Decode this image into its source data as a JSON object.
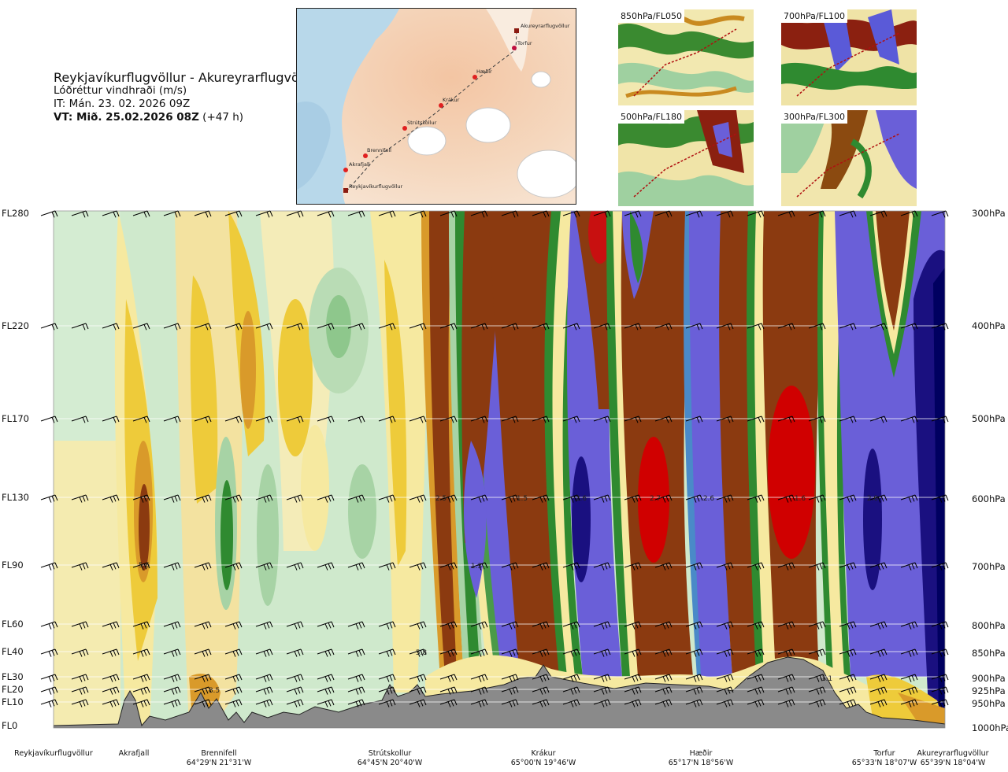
{
  "header": {
    "route": "Reykjavíkurflugvöllur - Akureyrarflugvöllur",
    "parameter": "Lóðréttur vindhraði (m/s)",
    "issue_time": "IT: Mán. 23. 02. 2026 09Z",
    "valid_time": "VT: Mið. 25.02.2026 08Z",
    "lead": "(+47 h)"
  },
  "map": {
    "waypoints": [
      "Akureyrarflugvöllur",
      "Torfur",
      "Hæðir",
      "Krákur",
      "Strútskollur",
      "Brennifell",
      "Akrafjall",
      "Reykjavíkurflugvöllur"
    ]
  },
  "thumbnails": [
    {
      "label": "850hPa/FL050"
    },
    {
      "label": "700hPa/FL100"
    },
    {
      "label": "500hPa/FL180"
    },
    {
      "label": "300hPa/FL300"
    }
  ],
  "colors": {
    "downdraft_strong": "#000070",
    "downdraft": "#6a5fd8",
    "updraft": "#8b1a10",
    "updraft_strong": "#d00000",
    "terrain": "#8a8a8a"
  },
  "chart_data": {
    "type": "heatmap",
    "title": "Lóðréttur vindhraði (m/s)",
    "y_left_levels": [
      "FL280",
      "FL220",
      "FL170",
      "FL130",
      "FL90",
      "FL60",
      "FL40",
      "FL30",
      "FL20",
      "FL10",
      "FL0"
    ],
    "y_right_levels": [
      "300hPa",
      "400hPa",
      "500hPa",
      "600hPa",
      "700hPa",
      "800hPa",
      "850hPa",
      "900hPa",
      "925hPa",
      "950hPa",
      "1000hPa"
    ],
    "x_waypoints": [
      {
        "name": "Reykjavíkurflugvöllur",
        "coord": ""
      },
      {
        "name": "Akrafjall",
        "coord": ""
      },
      {
        "name": "Brennifell",
        "coord": "64°29'N 21°31'W"
      },
      {
        "name": "Strútskollur",
        "coord": "64°45'N 20°40'W"
      },
      {
        "name": "Krákur",
        "coord": "65°00'N 19°46'W"
      },
      {
        "name": "Hæðir",
        "coord": "65°17'N 18°56'W"
      },
      {
        "name": "Torfur",
        "coord": "65°33'N 18°07'W"
      },
      {
        "name": "Akureyrarflugvöllur",
        "coord": "65°39'N 18°04'W"
      }
    ],
    "contour_labels": [
      "5.6",
      "8.5",
      "5.8",
      "2.5",
      "1.3",
      "1.5",
      "2.6",
      "2.7",
      "2.6",
      "1.6",
      "1.1",
      "2.0"
    ]
  }
}
